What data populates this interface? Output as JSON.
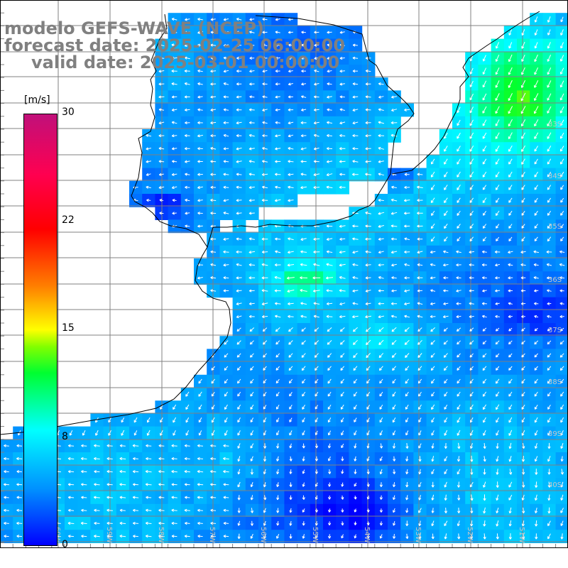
{
  "title": {
    "line1": "modelo GEFS-WAVE (NCEP)",
    "line2": "forecast date: 2025-02-25 06:00:00",
    "line3": "valid date: 2025-03-01 00:00:00"
  },
  "colorbar": {
    "unit": "[m/s]",
    "ticks": [
      "30",
      "22",
      "15",
      "8",
      "0"
    ],
    "min": 0,
    "max": 30,
    "colors": [
      "#0000ff",
      "#0090ff",
      "#00ffff",
      "#00ff30",
      "#80ff00",
      "#ffff00",
      "#ff8000",
      "#ff0000",
      "#ff0050",
      "#c0107a"
    ]
  },
  "map": {
    "lat_labels": [
      "33S",
      "34S",
      "35S",
      "36S",
      "37S",
      "38S",
      "39S",
      "40S"
    ],
    "lon_labels": [
      "60W",
      "59W",
      "58W",
      "57W",
      "56W",
      "55W",
      "54W",
      "53W",
      "52W",
      "51W"
    ],
    "grid_color": "#808080",
    "land_color": "#ffffff",
    "coast_color": "#000000",
    "arrow_color": "#ffffff"
  }
}
